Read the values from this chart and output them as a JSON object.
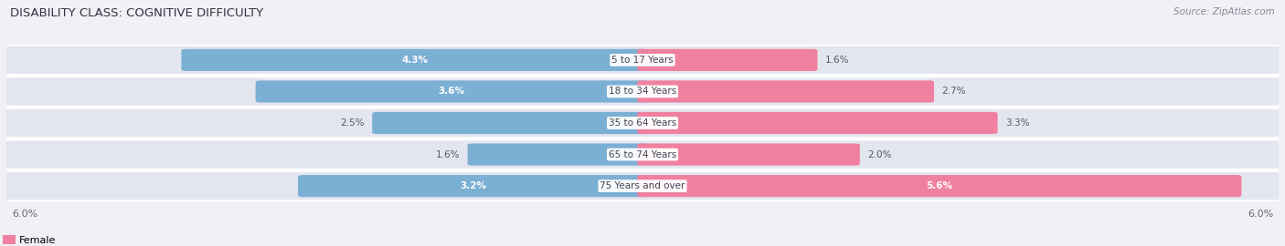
{
  "title": "DISABILITY CLASS: COGNITIVE DIFFICULTY",
  "source": "Source: ZipAtlas.com",
  "categories": [
    "5 to 17 Years",
    "18 to 34 Years",
    "35 to 64 Years",
    "65 to 74 Years",
    "75 Years and over"
  ],
  "male_values": [
    4.3,
    3.6,
    2.5,
    1.6,
    3.2
  ],
  "female_values": [
    1.6,
    2.7,
    3.3,
    2.0,
    5.6
  ],
  "male_color": "#7bafd4",
  "female_color": "#f080a0",
  "bar_bg_color": "#dde0ea",
  "max_val": 6.0,
  "title_fontsize": 9.5,
  "source_fontsize": 7.5,
  "label_fontsize": 7.5,
  "category_fontsize": 7.5,
  "axis_label_fontsize": 8,
  "background_color": "#f0f0f5",
  "row_bg_color": "#e4e6ef",
  "white_color": "#ffffff",
  "dark_label_color": "#555566"
}
